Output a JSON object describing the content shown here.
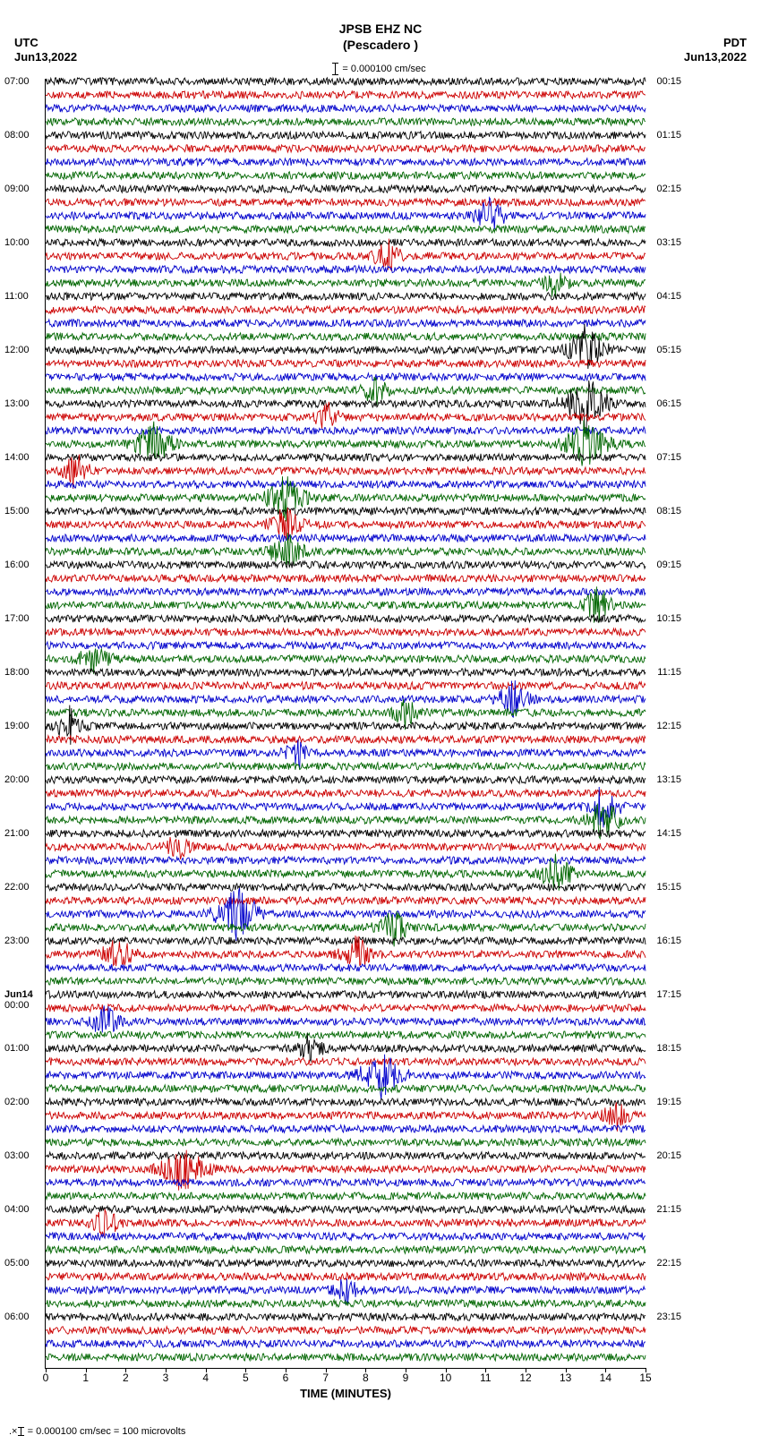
{
  "header": {
    "station": "JPSB EHZ NC",
    "location": "(Pescadero )",
    "left_tz": "UTC",
    "left_date": "Jun13,2022",
    "right_tz": "PDT",
    "right_date": "Jun13,2022",
    "scale_text": "= 0.000100 cm/sec"
  },
  "plot": {
    "x_label": "TIME (MINUTES)",
    "x_min": 0,
    "x_max": 15,
    "x_ticks": [
      0,
      1,
      2,
      3,
      4,
      5,
      6,
      7,
      8,
      9,
      10,
      11,
      12,
      13,
      14,
      15
    ],
    "trace_colors": [
      "#000000",
      "#cc0000",
      "#0000cc",
      "#006600"
    ],
    "background": "#ffffff",
    "n_traces": 96,
    "base_amp": 4.2,
    "burst_amp": 18,
    "trace_area_top": 0,
    "trace_spacing": 15,
    "left_hour_labels": [
      {
        "idx": 0,
        "text": "07:00"
      },
      {
        "idx": 4,
        "text": "08:00"
      },
      {
        "idx": 8,
        "text": "09:00"
      },
      {
        "idx": 12,
        "text": "10:00"
      },
      {
        "idx": 16,
        "text": "11:00"
      },
      {
        "idx": 20,
        "text": "12:00"
      },
      {
        "idx": 24,
        "text": "13:00"
      },
      {
        "idx": 28,
        "text": "14:00"
      },
      {
        "idx": 32,
        "text": "15:00"
      },
      {
        "idx": 36,
        "text": "16:00"
      },
      {
        "idx": 40,
        "text": "17:00"
      },
      {
        "idx": 44,
        "text": "18:00"
      },
      {
        "idx": 48,
        "text": "19:00"
      },
      {
        "idx": 52,
        "text": "20:00"
      },
      {
        "idx": 56,
        "text": "21:00"
      },
      {
        "idx": 60,
        "text": "22:00"
      },
      {
        "idx": 64,
        "text": "23:00"
      },
      {
        "idx": 68,
        "text": "Jun14",
        "date": true
      },
      {
        "idx": 68.8,
        "text": "00:00"
      },
      {
        "idx": 72,
        "text": "01:00"
      },
      {
        "idx": 76,
        "text": "02:00"
      },
      {
        "idx": 80,
        "text": "03:00"
      },
      {
        "idx": 84,
        "text": "04:00"
      },
      {
        "idx": 88,
        "text": "05:00"
      },
      {
        "idx": 92,
        "text": "06:00"
      }
    ],
    "right_hour_labels": [
      {
        "idx": 0,
        "text": "00:15"
      },
      {
        "idx": 4,
        "text": "01:15"
      },
      {
        "idx": 8,
        "text": "02:15"
      },
      {
        "idx": 12,
        "text": "03:15"
      },
      {
        "idx": 16,
        "text": "04:15"
      },
      {
        "idx": 20,
        "text": "05:15"
      },
      {
        "idx": 24,
        "text": "06:15"
      },
      {
        "idx": 28,
        "text": "07:15"
      },
      {
        "idx": 32,
        "text": "08:15"
      },
      {
        "idx": 36,
        "text": "09:15"
      },
      {
        "idx": 40,
        "text": "10:15"
      },
      {
        "idx": 44,
        "text": "11:15"
      },
      {
        "idx": 48,
        "text": "12:15"
      },
      {
        "idx": 52,
        "text": "13:15"
      },
      {
        "idx": 56,
        "text": "14:15"
      },
      {
        "idx": 60,
        "text": "15:15"
      },
      {
        "idx": 64,
        "text": "16:15"
      },
      {
        "idx": 68,
        "text": "17:15"
      },
      {
        "idx": 72,
        "text": "18:15"
      },
      {
        "idx": 76,
        "text": "19:15"
      },
      {
        "idx": 80,
        "text": "20:15"
      },
      {
        "idx": 84,
        "text": "21:15"
      },
      {
        "idx": 88,
        "text": "22:15"
      },
      {
        "idx": 92,
        "text": "23:15"
      }
    ],
    "bursts": [
      {
        "trace": 10,
        "x": 0.74,
        "w": 0.05,
        "amp": 2.0
      },
      {
        "trace": 13,
        "x": 0.57,
        "w": 0.04,
        "amp": 2.2
      },
      {
        "trace": 15,
        "x": 0.85,
        "w": 0.04,
        "amp": 1.8
      },
      {
        "trace": 20,
        "x": 0.9,
        "w": 0.06,
        "amp": 3.0
      },
      {
        "trace": 23,
        "x": 0.55,
        "w": 0.04,
        "amp": 2.0
      },
      {
        "trace": 24,
        "x": 0.9,
        "w": 0.07,
        "amp": 3.5
      },
      {
        "trace": 27,
        "x": 0.9,
        "w": 0.07,
        "amp": 3.0
      },
      {
        "trace": 27,
        "x": 0.18,
        "w": 0.06,
        "amp": 2.5
      },
      {
        "trace": 25,
        "x": 0.47,
        "w": 0.04,
        "amp": 2.0
      },
      {
        "trace": 29,
        "x": 0.05,
        "w": 0.04,
        "amp": 2.2
      },
      {
        "trace": 31,
        "x": 0.4,
        "w": 0.06,
        "amp": 2.8
      },
      {
        "trace": 33,
        "x": 0.4,
        "w": 0.05,
        "amp": 2.2
      },
      {
        "trace": 35,
        "x": 0.4,
        "w": 0.05,
        "amp": 2.5
      },
      {
        "trace": 39,
        "x": 0.92,
        "w": 0.04,
        "amp": 2.5
      },
      {
        "trace": 43,
        "x": 0.08,
        "w": 0.05,
        "amp": 2.0
      },
      {
        "trace": 46,
        "x": 0.78,
        "w": 0.05,
        "amp": 2.2
      },
      {
        "trace": 47,
        "x": 0.6,
        "w": 0.04,
        "amp": 1.8
      },
      {
        "trace": 48,
        "x": 0.04,
        "w": 0.04,
        "amp": 2.2
      },
      {
        "trace": 50,
        "x": 0.42,
        "w": 0.04,
        "amp": 1.8
      },
      {
        "trace": 54,
        "x": 0.93,
        "w": 0.05,
        "amp": 2.8
      },
      {
        "trace": 55,
        "x": 0.93,
        "w": 0.05,
        "amp": 2.5
      },
      {
        "trace": 57,
        "x": 0.22,
        "w": 0.04,
        "amp": 1.8
      },
      {
        "trace": 59,
        "x": 0.85,
        "w": 0.05,
        "amp": 2.5
      },
      {
        "trace": 62,
        "x": 0.32,
        "w": 0.07,
        "amp": 3.2
      },
      {
        "trace": 63,
        "x": 0.58,
        "w": 0.05,
        "amp": 2.0
      },
      {
        "trace": 65,
        "x": 0.12,
        "w": 0.05,
        "amp": 2.0
      },
      {
        "trace": 65,
        "x": 0.52,
        "w": 0.05,
        "amp": 2.2
      },
      {
        "trace": 70,
        "x": 0.1,
        "w": 0.05,
        "amp": 2.0
      },
      {
        "trace": 72,
        "x": 0.44,
        "w": 0.04,
        "amp": 1.8
      },
      {
        "trace": 74,
        "x": 0.56,
        "w": 0.07,
        "amp": 2.8
      },
      {
        "trace": 77,
        "x": 0.95,
        "w": 0.04,
        "amp": 2.0
      },
      {
        "trace": 81,
        "x": 0.23,
        "w": 0.07,
        "amp": 2.8
      },
      {
        "trace": 85,
        "x": 0.1,
        "w": 0.04,
        "amp": 1.8
      },
      {
        "trace": 90,
        "x": 0.5,
        "w": 0.04,
        "amp": 1.5
      }
    ]
  },
  "footer": {
    "text": "= 0.000100 cm/sec =    100 microvolts"
  }
}
